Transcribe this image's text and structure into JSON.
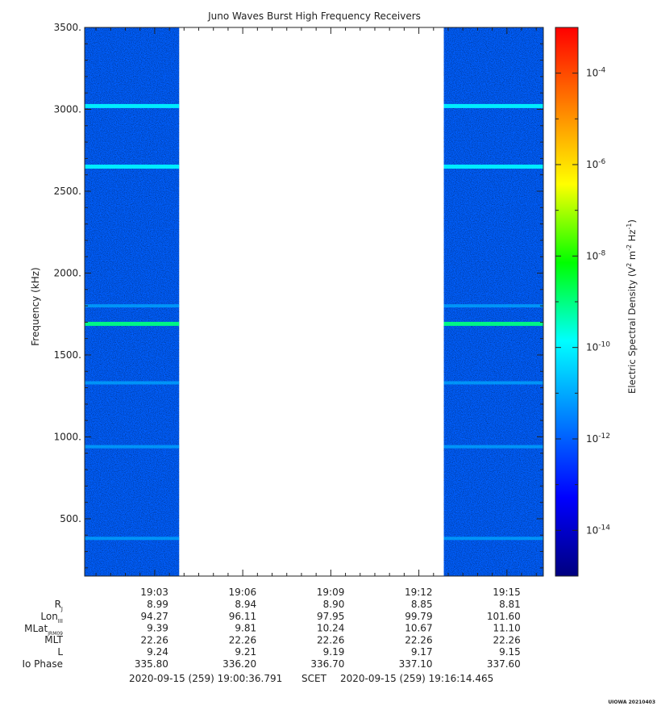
{
  "chart_data": {
    "type": "heatmap",
    "title": "Juno Waves Burst High Frequency Receivers",
    "ylabel": "Frequency (kHz)",
    "ylim": [
      150,
      3500
    ],
    "yticks": [
      500,
      1000,
      1500,
      2000,
      2500,
      3000,
      3500
    ],
    "ytick_labels": [
      "500.",
      "1000.",
      "1500.",
      "2000.",
      "2500.",
      "3000.",
      "3500."
    ],
    "time_range": [
      "19:00:36.791",
      "19:16:14.465"
    ],
    "xticks": [
      "19:03",
      "19:06",
      "19:09",
      "19:12",
      "19:15"
    ],
    "data_intervals": [
      [
        "19:00:36",
        "19:03:50"
      ],
      [
        "19:12:51",
        "19:16:14"
      ]
    ],
    "background_level": "1e-12",
    "emission_lines": [
      {
        "frequency": 3020,
        "level": "1e-10"
      },
      {
        "frequency": 2650,
        "level": "1e-10"
      },
      {
        "frequency": 1800,
        "level": "1e-11"
      },
      {
        "frequency": 1690,
        "level": "1e-9"
      },
      {
        "frequency": 1330,
        "level": "1e-11"
      },
      {
        "frequency": 940,
        "level": "1e-11"
      },
      {
        "frequency": 380,
        "level": "1e-11"
      }
    ],
    "colorbar": {
      "label": "Electric Spectral Density (V2 m-2 Hz-1)",
      "scale": "log",
      "range": [
        "1e-15",
        "1e-3"
      ],
      "tick_values": [
        -14,
        -12,
        -10,
        -8,
        -6,
        -4
      ],
      "colors": [
        "#00007f",
        "#0000ff",
        "#007fff",
        "#00ffff",
        "#00ff00",
        "#ffff00",
        "#ff7f00",
        "#ff0000"
      ]
    },
    "ephemeris": {
      "rows": [
        {
          "label": "RJ",
          "values": [
            "8.99",
            "8.94",
            "8.90",
            "8.85",
            "8.81"
          ]
        },
        {
          "label": "LonIII",
          "values": [
            "94.27",
            "96.11",
            "97.95",
            "99.79",
            "101.60"
          ]
        },
        {
          "label": "MLatJRM09",
          "values": [
            "9.39",
            "9.81",
            "10.24",
            "10.67",
            "11.10"
          ]
        },
        {
          "label": "MLT",
          "values": [
            "22.26",
            "22.26",
            "22.26",
            "22.26",
            "22.26"
          ]
        },
        {
          "label": "L",
          "values": [
            "9.24",
            "9.21",
            "9.19",
            "9.17",
            "9.15"
          ]
        },
        {
          "label": "Io Phase",
          "values": [
            "335.80",
            "336.20",
            "336.70",
            "337.10",
            "337.60"
          ]
        }
      ]
    }
  },
  "labels": {
    "rj_main": "R",
    "rj_sub": "J",
    "lon_main": "Lon",
    "lon_sub": "III",
    "mlat_main": "MLat",
    "mlat_sub": "JRM09",
    "mlt": "MLT",
    "l": "L",
    "io_phase": "Io Phase"
  },
  "footer": {
    "start": "2020-09-15 (259) 19:00:36.791",
    "scet": "SCET",
    "end": "2020-09-15 (259) 19:16:14.465",
    "stamp": "UIOWA 20210403"
  },
  "colorbar_text": {
    "label_main": "Electric Spectral Density (V",
    "sup2": "2",
    "m": " m",
    "supm2": "-2",
    "hz": " Hz",
    "supm1": "-1",
    "close": ")",
    "base": "10"
  },
  "colors": {
    "background": "#ffffff",
    "axis": "#222222"
  }
}
